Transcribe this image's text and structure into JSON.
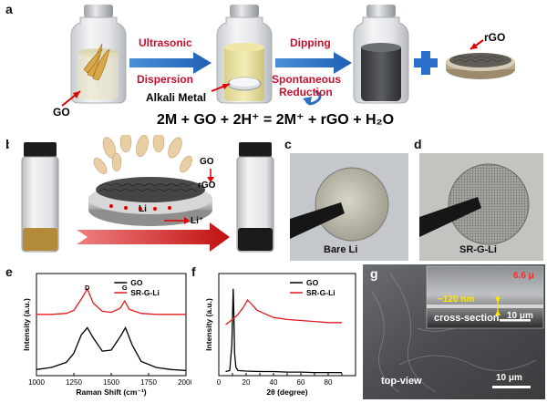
{
  "panels": {
    "a": {
      "label": "a",
      "step1_top": "Ultrasonic",
      "step1_bottom": "Dispersion",
      "step2_top": "Dipping",
      "step2_mid": "Spontaneous",
      "step2_bottom": "Reduction",
      "go_label": "GO",
      "alkali_label": "Alkali Metal",
      "rgo_label": "rGO",
      "equation": "2M + GO + 2H⁺ = 2M⁺ + rGO + H₂O"
    },
    "b": {
      "label": "b",
      "go_label": "GO",
      "rgo_label": "rGO",
      "li_label": "Li",
      "li_plus_label": "Li⁺",
      "electron": "e"
    },
    "c": {
      "label": "c",
      "caption": "Bare Li"
    },
    "d": {
      "label": "d",
      "caption": "SR-G-Li"
    },
    "e": {
      "label": "e"
    },
    "f": {
      "label": "f"
    },
    "g": {
      "label": "g",
      "annot_thickness_um": "6.6 μ",
      "annot_thickness_nm": "~120 nm",
      "inset_label": "cross-section",
      "inset_scale": "10 μm",
      "main_label": "top-view",
      "main_scale": "10 μm"
    }
  },
  "chart_data": [
    {
      "id": "e",
      "type": "line",
      "xlabel": "Raman Shift (cm⁻¹)",
      "ylabel": "Intensity (a.u.)",
      "xlim": [
        1000,
        2000
      ],
      "xticks": [
        1000,
        1250,
        1500,
        1750,
        2000
      ],
      "yticks_shown": false,
      "legend": "top-right",
      "peak_labels": [
        {
          "text": "D",
          "x": 1340
        },
        {
          "text": "G",
          "x": 1590
        }
      ],
      "series": [
        {
          "name": "GO",
          "color": "#000000",
          "x": [
            1000,
            1100,
            1200,
            1250,
            1300,
            1340,
            1380,
            1440,
            1500,
            1560,
            1595,
            1640,
            1700,
            1800,
            1900,
            2000
          ],
          "y": [
            0.06,
            0.08,
            0.13,
            0.22,
            0.4,
            0.47,
            0.37,
            0.24,
            0.25,
            0.38,
            0.47,
            0.3,
            0.14,
            0.08,
            0.06,
            0.05
          ]
        },
        {
          "name": "SR-G-Li",
          "color": "#e31a1c",
          "x": [
            1000,
            1100,
            1200,
            1250,
            1300,
            1340,
            1380,
            1440,
            1500,
            1560,
            1590,
            1620,
            1700,
            1800,
            1900,
            2000
          ],
          "y": [
            0.6,
            0.6,
            0.61,
            0.64,
            0.75,
            0.85,
            0.71,
            0.63,
            0.62,
            0.66,
            0.73,
            0.65,
            0.61,
            0.6,
            0.6,
            0.6
          ]
        }
      ]
    },
    {
      "id": "f",
      "type": "line",
      "xlabel": "2θ (degree)",
      "ylabel": "Intensity (a.u.)",
      "xlim": [
        0,
        100
      ],
      "xticks": [
        0,
        10,
        20,
        30,
        40,
        50,
        60,
        70,
        80,
        90,
        100
      ],
      "yticks_shown": false,
      "legend": "top-right",
      "series": [
        {
          "name": "GO",
          "color": "#000000",
          "x": [
            5,
            8,
            9.5,
            10.5,
            11,
            11.5,
            12.5,
            14,
            20,
            30,
            40,
            50,
            60,
            70,
            80,
            90
          ],
          "y": [
            0.04,
            0.05,
            0.3,
            0.85,
            0.62,
            0.22,
            0.08,
            0.05,
            0.045,
            0.04,
            0.04,
            0.035,
            0.035,
            0.03,
            0.03,
            0.03
          ]
        },
        {
          "name": "SR-G-Li",
          "color": "#e31a1c",
          "x": [
            5,
            10,
            14,
            18,
            21,
            24,
            28,
            33,
            40,
            50,
            60,
            70,
            80,
            90
          ],
          "y": [
            0.5,
            0.55,
            0.6,
            0.67,
            0.74,
            0.7,
            0.64,
            0.61,
            0.57,
            0.55,
            0.54,
            0.53,
            0.52,
            0.52
          ]
        }
      ]
    }
  ]
}
